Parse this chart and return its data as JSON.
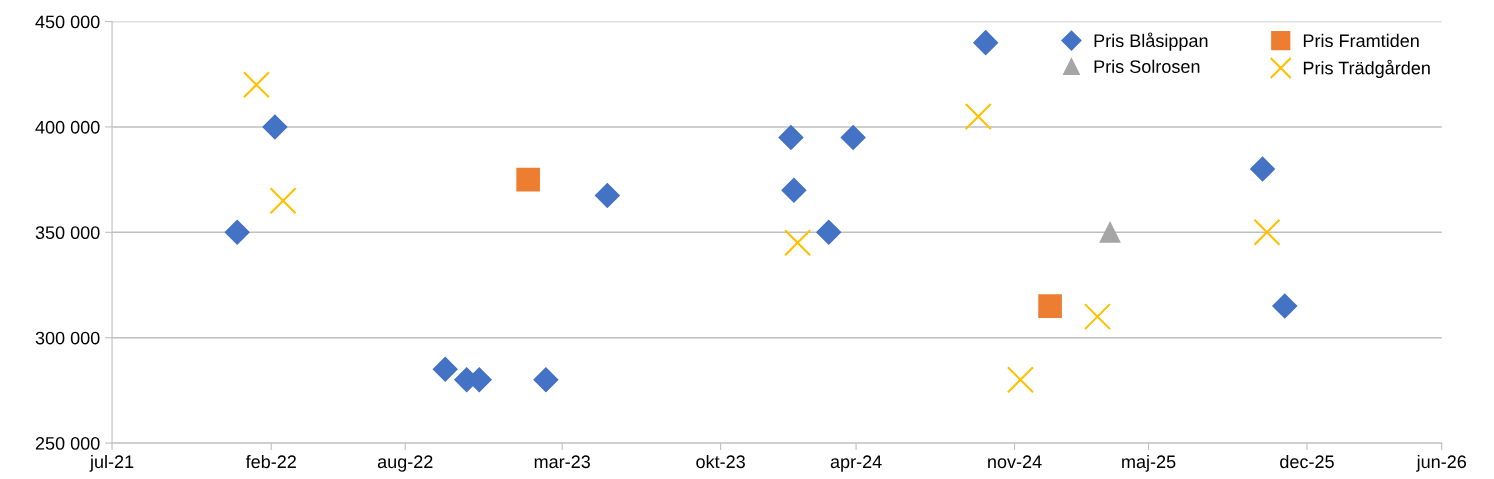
{
  "chart_data": {
    "type": "scatter",
    "grid": "y",
    "legend": "top right",
    "xlim": [
      "2021-07",
      "2026-06"
    ],
    "xticks": [
      {
        "value": "2021-07",
        "label": "jul-21"
      },
      {
        "value": "2022-02",
        "label": "feb-22"
      },
      {
        "value": "2022-08",
        "label": "aug-22"
      },
      {
        "value": "2023-03",
        "label": "mar-23"
      },
      {
        "value": "2023-10",
        "label": "okt-23"
      },
      {
        "value": "2024-04",
        "label": "apr-24"
      },
      {
        "value": "2024-11",
        "label": "nov-24"
      },
      {
        "value": "2025-05",
        "label": "maj-25"
      },
      {
        "value": "2025-12",
        "label": "dec-25"
      },
      {
        "value": "2026-06",
        "label": "jun-26"
      }
    ],
    "ylim": [
      250000,
      450000
    ],
    "yticks": [
      {
        "value": 250000,
        "label": "250 000"
      },
      {
        "value": 300000,
        "label": "300 000"
      },
      {
        "value": 350000,
        "label": "350 000"
      },
      {
        "value": 400000,
        "label": "400 000"
      },
      {
        "value": 450000,
        "label": "450 000"
      }
    ],
    "series": [
      {
        "name": "Pris Blåsippan",
        "color": "#4472c4",
        "marker": "diamond",
        "x": [
          "2021-12-17",
          "2022-02-06",
          "2022-09-24",
          "2022-10-23",
          "2022-11-09",
          "2023-02-07",
          "2023-05-01",
          "2024-01-04",
          "2024-01-08",
          "2024-02-24",
          "2024-03-28",
          "2024-09-23",
          "2025-10-02",
          "2025-11-01"
        ],
        "values": [
          350000,
          400000,
          285000,
          280000,
          280000,
          280000,
          367500,
          395000,
          370000,
          350000,
          395000,
          440000,
          380000,
          315000
        ]
      },
      {
        "name": "Pris Framtiden",
        "color": "#ed7d31",
        "marker": "square",
        "x": [
          "2023-01-14",
          "2024-12-19"
        ],
        "values": [
          375000,
          315000
        ]
      },
      {
        "name": "Pris Solrosen",
        "color": "#a5a5a5",
        "marker": "triangle",
        "x": [
          "2025-03-10"
        ],
        "values": [
          350000
        ]
      },
      {
        "name": "Pris Trädgården",
        "color": "#ffc000",
        "marker": "cross",
        "x": [
          "2022-01-12",
          "2022-02-17",
          "2024-01-13",
          "2024-09-13",
          "2024-11-09",
          "2025-02-21",
          "2025-10-08"
        ],
        "values": [
          420000,
          365000,
          345000,
          405000,
          280000,
          310000,
          350000
        ]
      }
    ]
  }
}
